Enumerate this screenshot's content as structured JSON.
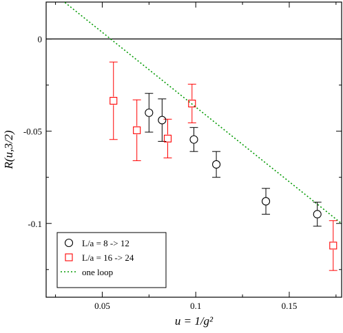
{
  "chart_data": {
    "type": "scatter",
    "xlabel": "u = 1/g²",
    "ylabel": "R(u,3/2)",
    "xlim": [
      0.02,
      0.178
    ],
    "ylim": [
      -0.14,
      0.02
    ],
    "xticks": [
      0.05,
      0.1,
      0.15
    ],
    "xtick_labels": [
      "0.05",
      "0.1",
      "0.15"
    ],
    "yticks": [
      0,
      -0.05,
      -0.1
    ],
    "ytick_labels": [
      "0",
      "-0.05",
      "-0.1"
    ],
    "hline": 0,
    "grid": false,
    "legend_position": "bottom-left",
    "series": [
      {
        "name": "L/a = 8 -> 12",
        "marker": "circle",
        "color": "#000000",
        "points": [
          {
            "x": 0.075,
            "y": -0.04,
            "err": 0.0105
          },
          {
            "x": 0.082,
            "y": -0.044,
            "err": 0.0115
          },
          {
            "x": 0.099,
            "y": -0.0545,
            "err": 0.0065
          },
          {
            "x": 0.111,
            "y": -0.068,
            "err": 0.007
          },
          {
            "x": 0.1375,
            "y": -0.088,
            "err": 0.007
          },
          {
            "x": 0.165,
            "y": -0.095,
            "err": 0.0065
          }
        ]
      },
      {
        "name": "L/a = 16 -> 24",
        "marker": "square",
        "color": "#ff0000",
        "points": [
          {
            "x": 0.056,
            "y": -0.0335,
            "err": 0.021
          },
          {
            "x": 0.0685,
            "y": -0.0495,
            "err": 0.0165
          },
          {
            "x": 0.085,
            "y": -0.054,
            "err": 0.0105
          },
          {
            "x": 0.098,
            "y": -0.035,
            "err": 0.0105
          },
          {
            "x": 0.1735,
            "y": -0.112,
            "err": 0.0135
          }
        ]
      },
      {
        "name": "one loop",
        "type": "line",
        "style": "dotted",
        "color": "#009900",
        "x": [
          0.02,
          0.178
        ],
        "y": [
          0.0279,
          -0.1001
        ]
      }
    ]
  }
}
